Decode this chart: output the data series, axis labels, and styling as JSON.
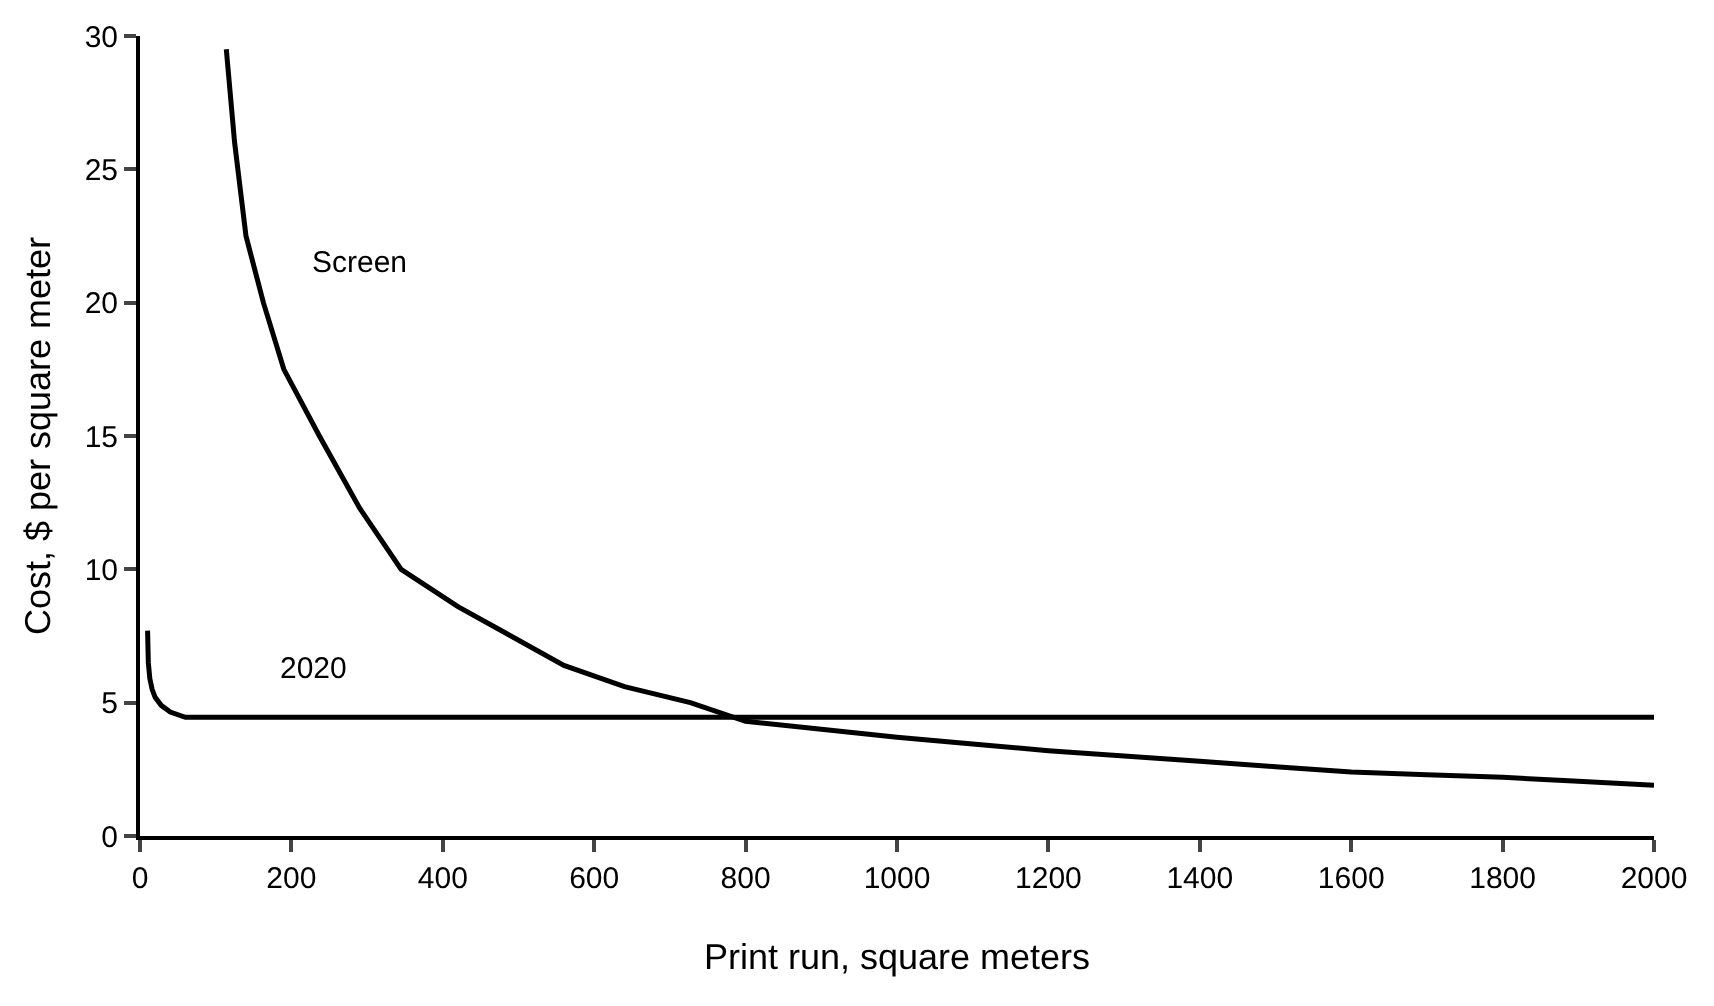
{
  "chart_data": {
    "type": "line",
    "xlabel": "Print run, square meters",
    "ylabel": "Cost, $ per square meter",
    "xlim": [
      0,
      2000
    ],
    "xticks": [
      0,
      200,
      400,
      600,
      800,
      1000,
      1200,
      1400,
      1600,
      1800,
      2000
    ],
    "ylim": [
      0,
      30
    ],
    "yticks": [
      0,
      5,
      10,
      15,
      20,
      25,
      30
    ],
    "legend": false,
    "marker": "none",
    "line_style": "solid",
    "series": [
      {
        "name": "Screen",
        "color": "#000000",
        "x": [
          114,
          125,
          140,
          163,
          190,
          237,
          290,
          345,
          420,
          490,
          560,
          640,
          727,
          800,
          900,
          1000,
          1100,
          1200,
          1300,
          1400,
          1500,
          1600,
          1700,
          1800,
          1900,
          2000
        ],
        "values": [
          29.5,
          26,
          22.5,
          20,
          17.5,
          15,
          12.3,
          10,
          8.6,
          7.5,
          6.4,
          5.6,
          5,
          4.3,
          4,
          3.7,
          3.45,
          3.2,
          3,
          2.8,
          2.6,
          2.4,
          2.3,
          2.2,
          2.05,
          1.9
        ]
      },
      {
        "name": "2020",
        "color": "#000000",
        "x": [
          10,
          11,
          13,
          16,
          20,
          28,
          40,
          60,
          100,
          500,
          1000,
          1500,
          2000
        ],
        "values": [
          7.7,
          6.5,
          5.9,
          5.5,
          5.2,
          4.9,
          4.65,
          4.45,
          4.45,
          4.45,
          4.45,
          4.45,
          4.45
        ]
      }
    ]
  }
}
